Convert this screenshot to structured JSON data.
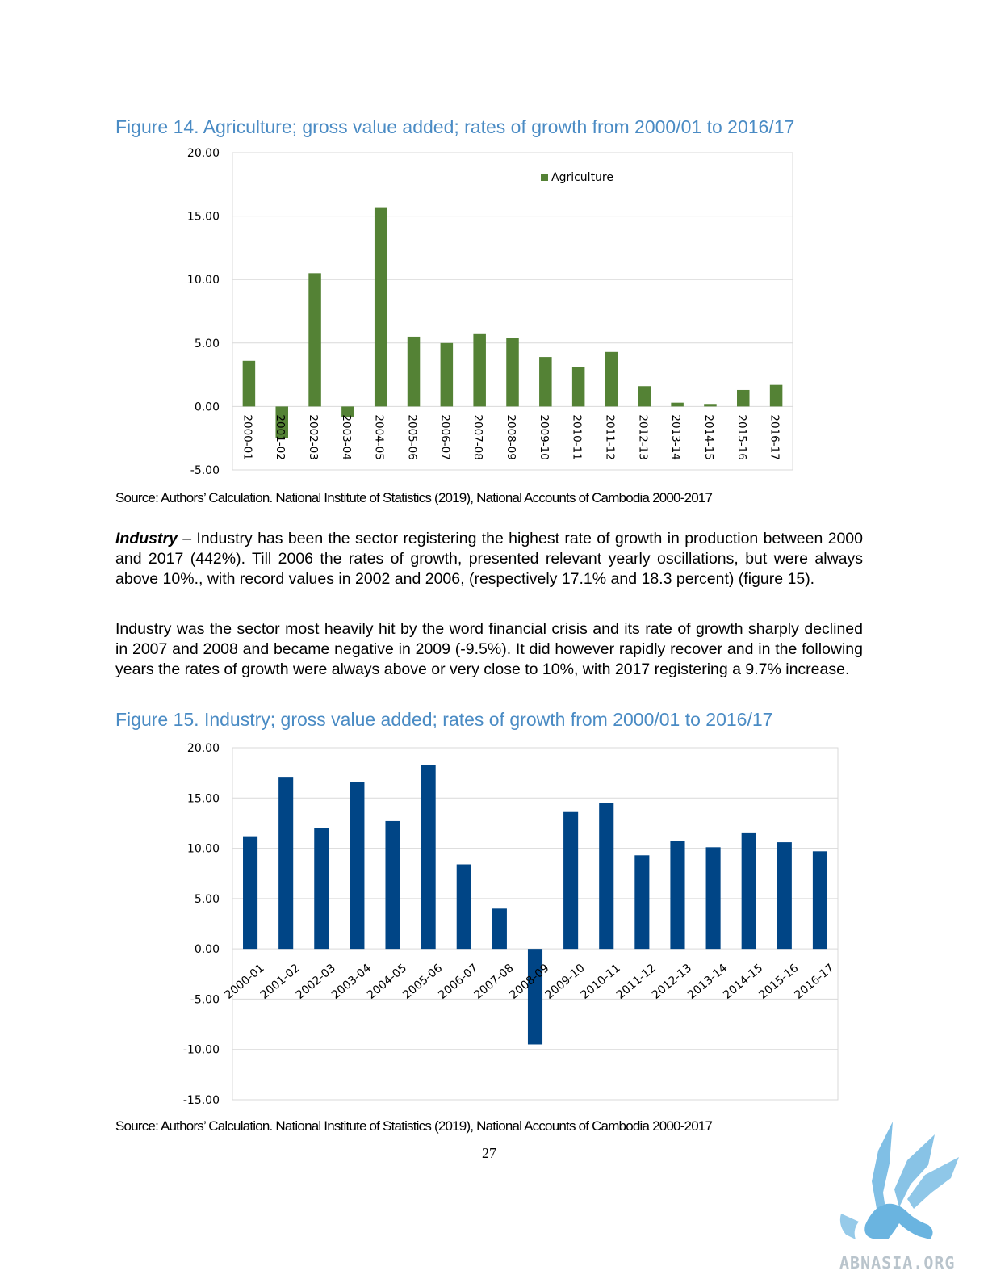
{
  "figure14": {
    "title": "Figure 14. Agriculture; gross value added; rates of growth from 2000/01 to 2016/17",
    "source": "Source: Authors’ Calculation. National Institute of Statistics (2019), National Accounts of Cambodia 2000-2017"
  },
  "paragraphs": {
    "p1_bold": "Industry",
    "p1_rest": " – Industry has been the sector registering the highest rate of growth in production between 2000 and 2017 (442%). Till 2006 the rates of growth, presented relevant yearly oscillations, but were always above 10%., with record values in 2002 and 2006, (respectively 17.1% and 18.3 percent) (figure 15).",
    "p2": "Industry was the sector most heavily hit by the word financial crisis and its rate of growth sharply declined in 2007 and 2008 and became negative in 2009 (-9.5%). It did however rapidly recover and in the following years the rates of growth were always above or very close to 10%, with 2017 registering a 9.7% increase."
  },
  "figure15": {
    "title": "Figure 15. Industry; gross value added; rates of growth from 2000/01 to 2016/17",
    "source": "Source: Authors’ Calculation. National Institute of Statistics (2019), National Accounts of Cambodia 2000-2017"
  },
  "page_number": "27",
  "logo": {
    "text": "ABNASIA.ORG",
    "icon": "griffin-icon",
    "color": "#6ab4e0"
  },
  "chart_data": [
    {
      "type": "bar",
      "title": "",
      "xlabel": "",
      "ylabel": "",
      "categories": [
        "2000-01",
        "2001-02",
        "2002-03",
        "2003-04",
        "2004-05",
        "2005-06",
        "2006-07",
        "2007-08",
        "2008-09",
        "2009-10",
        "2010-11",
        "2011-12",
        "2012-13",
        "2013-14",
        "2014-15",
        "2015-16",
        "2016-17"
      ],
      "series": [
        {
          "name": "Agriculture",
          "color": "#548235",
          "values": [
            3.6,
            -2.5,
            10.5,
            -0.8,
            15.7,
            5.5,
            5.0,
            5.7,
            5.4,
            3.9,
            3.1,
            4.3,
            1.6,
            0.3,
            0.2,
            1.3,
            1.7
          ]
        }
      ],
      "ylim": [
        -5,
        20
      ],
      "yticks": [
        "20.00",
        "15.00",
        "10.00",
        "5.00",
        "0.00",
        "-5.00"
      ],
      "grid": true,
      "legend": "top-right",
      "tick_rotation": "vertical"
    },
    {
      "type": "bar",
      "title": "",
      "xlabel": "",
      "ylabel": "",
      "categories": [
        "2000-01",
        "2001-02",
        "2002-03",
        "2003-04",
        "2004-05",
        "2005-06",
        "2006-07",
        "2007-08",
        "2008-09",
        "2009-10",
        "2010-11",
        "2011-12",
        "2012-13",
        "2013-14",
        "2014-15",
        "2015-16",
        "2016-17"
      ],
      "series": [
        {
          "name": "",
          "color": "#004586",
          "values": [
            11.2,
            17.1,
            12.0,
            16.6,
            12.7,
            18.3,
            8.4,
            4.0,
            -9.5,
            13.6,
            14.5,
            9.3,
            10.7,
            10.1,
            11.5,
            10.6,
            9.7
          ]
        }
      ],
      "ylim": [
        -15,
        20
      ],
      "yticks": [
        "20.00",
        "15.00",
        "10.00",
        "5.00",
        "0.00",
        "-5.00",
        "-10.00",
        "-15.00"
      ],
      "grid": true,
      "legend": "none",
      "tick_rotation": "diagonal"
    }
  ]
}
